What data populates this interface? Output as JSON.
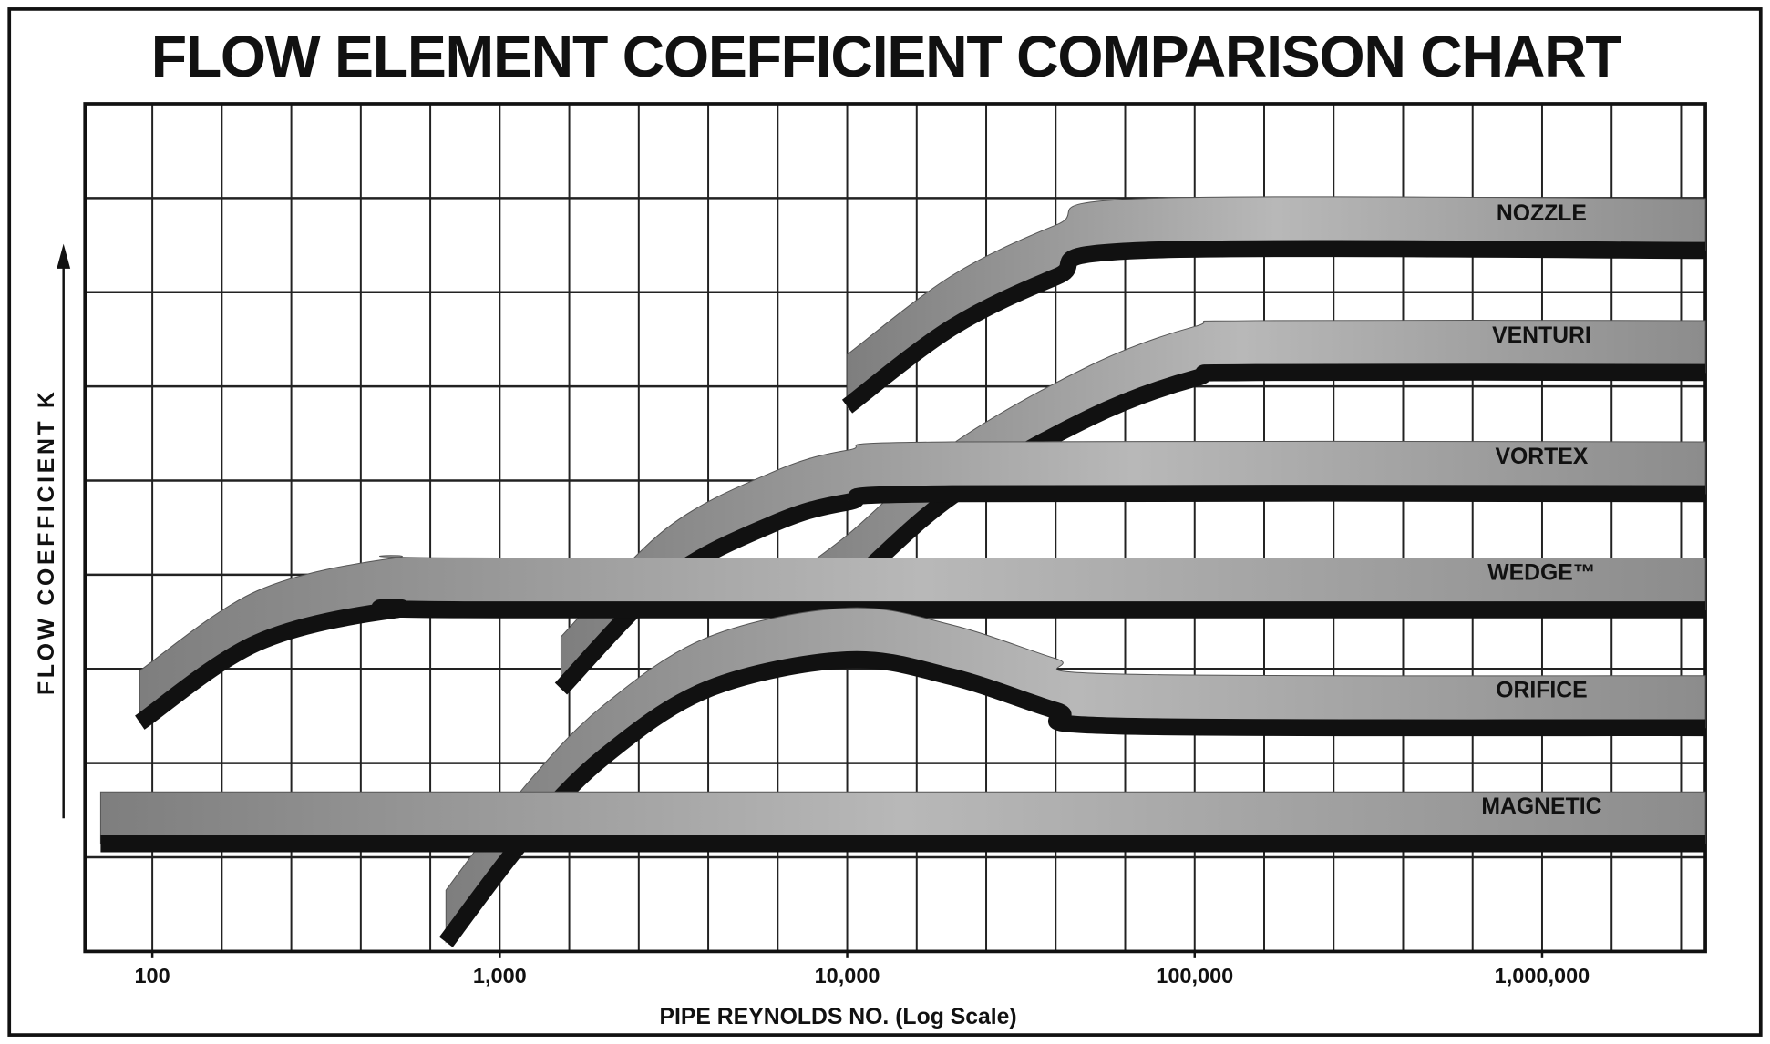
{
  "chart_data": {
    "type": "line",
    "title": "FLOW ELEMENT COEFFICIENT COMPARISON CHART",
    "xlabel": "PIPE REYNOLDS NO. (Log Scale)",
    "ylabel": "FLOW COEFFICIENT K",
    "xscale": "log",
    "xlim": [
      64,
      2950000
    ],
    "ylim": [
      0,
      100
    ],
    "xticks": [
      100,
      {
        "value": 1000,
        "label": "1,000"
      },
      {
        "value": 10000,
        "label": "10,000"
      },
      {
        "value": 100000,
        "label": "100,000"
      },
      {
        "value": 1000000,
        "label": "1,000,000"
      }
    ],
    "grid": true,
    "band_color": "#9a9a9a",
    "series": [
      {
        "name": "NOZZLE",
        "color": "#111111",
        "x": [
          10000,
          20000,
          40000,
          70000,
          2950000
        ],
        "values": [
          64.3,
          73.6,
          79.6,
          82.7,
          82.7
        ]
      },
      {
        "name": "VENTURI",
        "color": "#111111",
        "x": [
          6300,
          10000,
          20000,
          50000,
          100000,
          150000,
          2950000
        ],
        "values": [
          37,
          43,
          53.7,
          63,
          67.6,
          68.3,
          68.3
        ]
      },
      {
        "name": "VORTEX",
        "color": "#111111",
        "x": [
          1500,
          3000,
          6000,
          10000,
          20000,
          2950000
        ],
        "values": [
          31,
          43.7,
          50.3,
          53,
          54,
          54
        ]
      },
      {
        "name": "WEDGE™",
        "color": "#111111",
        "x": [
          92,
          200,
          500,
          1000,
          2950000
        ],
        "values": [
          27,
          36.4,
          40.3,
          40.3,
          40.3
        ]
      },
      {
        "name": "ORIFICE",
        "color": "#111111",
        "x": [
          700,
          1200,
          2000,
          4000,
          10000,
          20000,
          40000,
          60000,
          2950000
        ],
        "values": [
          1.1,
          13.7,
          23,
          31,
          34.4,
          32.4,
          28.4,
          26.6,
          26.4
        ]
      },
      {
        "name": "MAGNETIC",
        "color": "#111111",
        "x": [
          71,
          2950000
        ],
        "values": [
          12.7,
          12.7
        ]
      }
    ]
  }
}
